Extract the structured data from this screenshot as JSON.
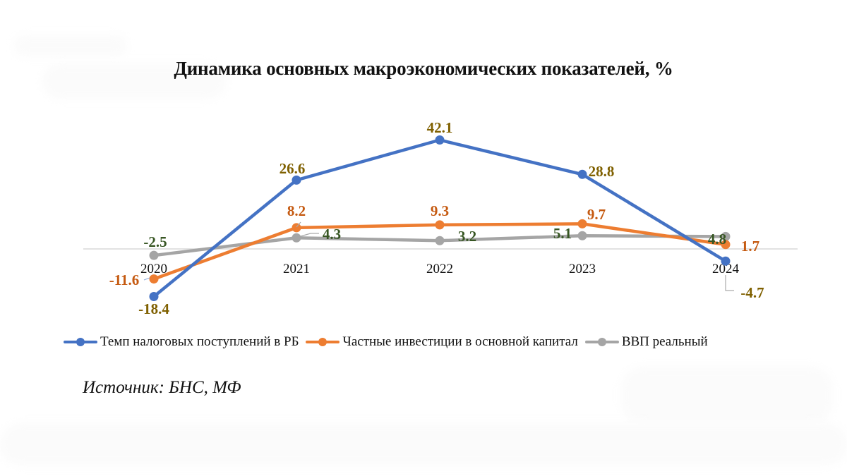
{
  "title": "Динамика основных макроэкономических показателей, %",
  "source": "Источник: БНС, МФ",
  "legend": [
    {
      "label": "Темп налоговых поступлений в РБ",
      "color": "#4472C4"
    },
    {
      "label": "Частные инвестиции в основной капитал",
      "color": "#ED7D31"
    },
    {
      "label": "ВВП реальный",
      "color": "#A5A5A5"
    }
  ],
  "colors": {
    "blue_series": "#4472C4",
    "orange_series": "#ED7D31",
    "gray_series": "#A5A5A5",
    "label_olive": "#7F6000",
    "label_orange": "#C55A11",
    "label_green": "#375623",
    "axis": "#d9d9d9"
  },
  "chart_data": {
    "type": "line",
    "title": "Динамика основных макроэкономических показателей, %",
    "xlabel": "",
    "ylabel": "",
    "categories": [
      "2020",
      "2021",
      "2022",
      "2023",
      "2024"
    ],
    "series": [
      {
        "name": "Темп налоговых поступлений в РБ",
        "values": [
          -18.4,
          26.6,
          42.1,
          28.8,
          -4.7
        ]
      },
      {
        "name": "Частные инвестиции в основной капитал",
        "values": [
          -11.6,
          8.2,
          9.3,
          9.7,
          1.7
        ]
      },
      {
        "name": "ВВП реальный",
        "values": [
          -2.5,
          4.3,
          3.2,
          5.1,
          4.8
        ]
      }
    ],
    "data_labels": true,
    "grid": false,
    "y_axis_visible": false,
    "legend_position": "bottom",
    "source": "Источник: БНС, МФ"
  }
}
